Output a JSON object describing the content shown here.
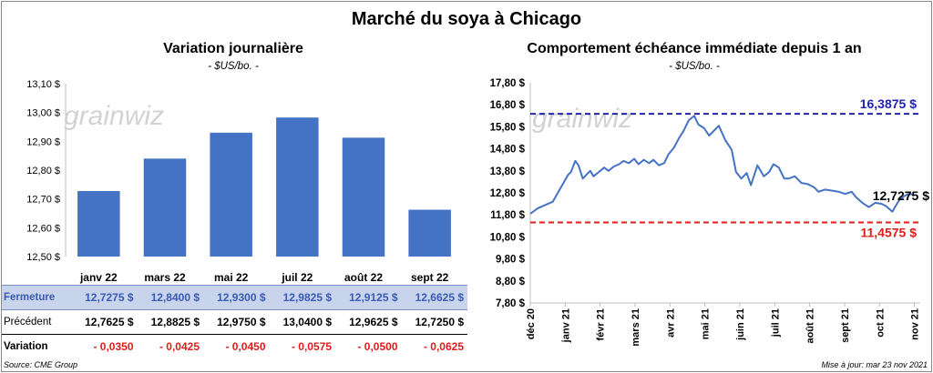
{
  "title": "Marché du soya à Chicago",
  "left_panel": {
    "title": "Variation  journalière",
    "subtitle": "- $US/bo. -",
    "watermark": "grainwiz"
  },
  "right_panel": {
    "title": "Comportement  échéance immédiate depuis 1 an",
    "subtitle": "- $US/bo. -",
    "watermark": "grainwiz"
  },
  "table": {
    "rows": [
      {
        "label": "Fermeture",
        "values": [
          "12,7275  $",
          "12,8400  $",
          "12,9300  $",
          "12,9825  $",
          "12,9125  $",
          "12,6625  $"
        ]
      },
      {
        "label": "Précédent",
        "values": [
          "12,7625  $",
          "12,8825  $",
          "12,9750  $",
          "13,0400  $",
          "12,9625  $",
          "12,7250  $"
        ]
      },
      {
        "label": "Variation",
        "values": [
          "- 0,0350",
          "- 0,0425",
          "- 0,0450",
          "- 0,0575",
          "- 0,0500",
          "- 0,0625"
        ]
      }
    ]
  },
  "footer": {
    "source": "Source: CME Group",
    "updated": "Mise à jour: mar 23 nov 2021"
  },
  "colors": {
    "bar": "#4472c4",
    "line": "#4472c4",
    "high": "#2222aa",
    "low": "#e31b1b"
  },
  "chart_data": [
    {
      "type": "bar",
      "categories": [
        "janv 22",
        "mars 22",
        "mai 22",
        "juil 22",
        "août 22",
        "sept 22"
      ],
      "values": [
        12.7275,
        12.84,
        12.93,
        12.9825,
        12.9125,
        12.6625
      ],
      "ylim": [
        12.5,
        13.1
      ],
      "yticks": [
        "12,50 $",
        "12,60 $",
        "12,70 $",
        "12,80 $",
        "12,90 $",
        "13,00 $",
        "13,10 $"
      ],
      "grid": false
    },
    {
      "type": "line",
      "x": [
        "2020-12-01",
        "2020-12-08",
        "2020-12-15",
        "2020-12-22",
        "2020-12-29",
        "2021-01-05",
        "2021-01-08",
        "2021-01-12",
        "2021-01-15",
        "2021-01-19",
        "2021-01-22",
        "2021-01-26",
        "2021-01-29",
        "2021-02-03",
        "2021-02-08",
        "2021-02-12",
        "2021-02-17",
        "2021-02-22",
        "2021-02-26",
        "2021-03-03",
        "2021-03-08",
        "2021-03-12",
        "2021-03-17",
        "2021-03-22",
        "2021-03-26",
        "2021-03-31",
        "2021-04-05",
        "2021-04-09",
        "2021-04-14",
        "2021-04-19",
        "2021-04-23",
        "2021-04-28",
        "2021-05-03",
        "2021-05-07",
        "2021-05-12",
        "2021-05-17",
        "2021-05-21",
        "2021-05-26",
        "2021-06-01",
        "2021-06-07",
        "2021-06-11",
        "2021-06-16",
        "2021-06-21",
        "2021-06-25",
        "2021-07-01",
        "2021-07-07",
        "2021-07-12",
        "2021-07-16",
        "2021-07-21",
        "2021-07-26",
        "2021-07-30",
        "2021-08-05",
        "2021-08-11",
        "2021-08-17",
        "2021-08-23",
        "2021-08-27",
        "2021-09-02",
        "2021-09-09",
        "2021-09-15",
        "2021-09-21",
        "2021-09-27",
        "2021-10-01",
        "2021-10-07",
        "2021-10-13",
        "2021-10-19",
        "2021-10-25",
        "2021-10-29",
        "2021-11-04",
        "2021-11-10",
        "2021-11-15",
        "2021-11-19",
        "2021-11-23"
      ],
      "series": [
        {
          "values": [
            11.85,
            12.1,
            12.25,
            12.4,
            13.0,
            13.6,
            13.75,
            14.25,
            14.05,
            13.45,
            13.6,
            13.8,
            13.55,
            13.75,
            13.95,
            13.8,
            14.0,
            14.1,
            14.25,
            14.15,
            14.35,
            14.1,
            14.3,
            14.15,
            14.3,
            14.05,
            14.15,
            14.55,
            14.85,
            15.3,
            15.6,
            16.1,
            16.3,
            15.9,
            15.75,
            15.4,
            15.6,
            15.85,
            15.2,
            14.75,
            13.75,
            13.45,
            13.7,
            13.15,
            14.05,
            13.55,
            13.75,
            14.1,
            13.95,
            13.45,
            13.45,
            13.55,
            13.25,
            13.2,
            13.05,
            12.85,
            12.95,
            12.9,
            12.85,
            12.75,
            12.85,
            12.6,
            12.35,
            12.15,
            12.35,
            12.3,
            12.2,
            11.95,
            12.45,
            12.65,
            12.75,
            12.7275
          ]
        }
      ],
      "xticks": [
        "déc 20",
        "janv 21",
        "févr 21",
        "mars 21",
        "avr 21",
        "mai 21",
        "juin 21",
        "juil 21",
        "août 21",
        "sept 21",
        "oct 21",
        "nov 21"
      ],
      "ylim": [
        7.8,
        17.8
      ],
      "yticks": [
        "7,80 $",
        "8,80 $",
        "9,80 $",
        "10,80 $",
        "11,80 $",
        "12,80 $",
        "13,80 $",
        "14,80 $",
        "15,80 $",
        "16,80 $",
        "17,80 $"
      ],
      "high": {
        "value": 16.3875,
        "label": "16,3875 $"
      },
      "low": {
        "value": 11.4575,
        "label": "11,4575 $"
      },
      "last": {
        "value": 12.7275,
        "label": "12,7275 $"
      },
      "grid": false
    }
  ]
}
